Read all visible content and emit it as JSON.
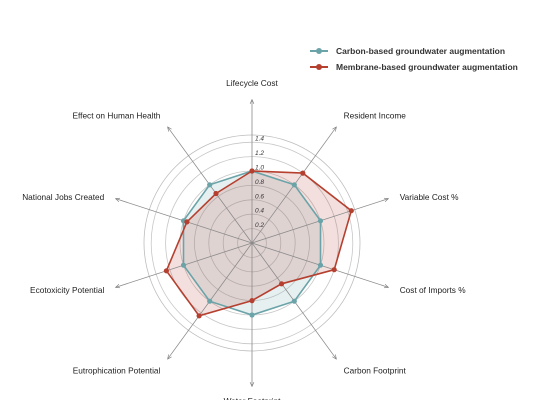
{
  "chart_data": {
    "type": "radar",
    "axes": [
      "Lifecycle Cost",
      "Resident Income",
      "Variable Cost %",
      "Cost of Imports %",
      "Carbon Footprint",
      "Water Footprint",
      "Eutrophication Potential",
      "Ecotoxicity Potential",
      "National Jobs Created",
      "Effect on Human Health"
    ],
    "ticks": [
      "0.2",
      "0.4",
      "0.6",
      "0.8",
      "1.0",
      "1.2",
      "1.4"
    ],
    "rlim": [
      0,
      1.5
    ],
    "grid": true,
    "legend_position": "top-right",
    "series": [
      {
        "name": "Carbon-based groundwater augmentation",
        "color": "#6aa3a8",
        "values": [
          1.0,
          1.0,
          1.0,
          1.0,
          1.0,
          1.0,
          1.0,
          1.0,
          1.0,
          1.0
        ]
      },
      {
        "name": "Membrane-based groundwater augmentation",
        "color": "#b5402f",
        "values": [
          1.0,
          1.2,
          1.45,
          1.2,
          0.7,
          0.8,
          1.25,
          1.25,
          0.95,
          0.85
        ]
      }
    ]
  }
}
